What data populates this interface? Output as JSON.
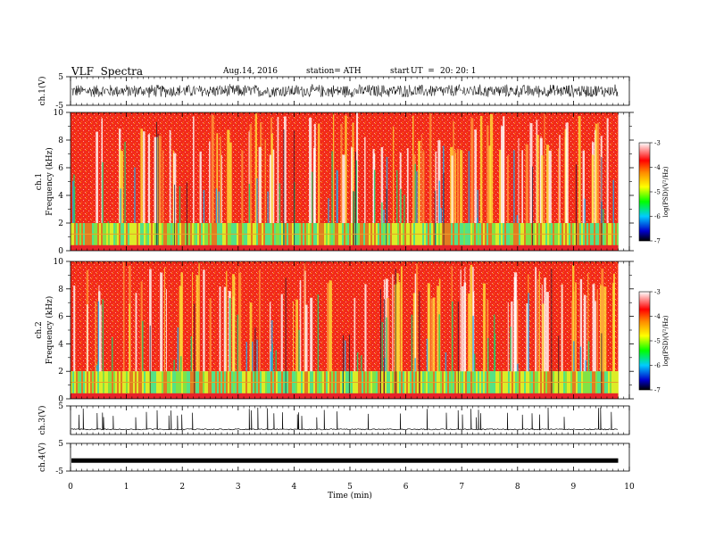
{
  "header": {
    "title": "VLF  Spectra",
    "date": "Aug.14, 2016",
    "station": "station= ATH",
    "start_label": "start",
    "ut_label": "UT  =",
    "ut_value": "20: 20: 1"
  },
  "chart_data": [
    {
      "type": "line",
      "name": "ch1-waveform",
      "ylabel": "ch.1(V)",
      "ylim": [
        -5,
        5
      ],
      "yticks": [
        "5",
        "-5"
      ],
      "xlim": [
        0,
        10
      ],
      "description_values": {
        "amplitude_min": -2.5,
        "amplitude_max": 2.5
      }
    },
    {
      "type": "heatmap",
      "name": "ch1-spectrogram",
      "ylabel": "ch.1\nFrequency  (kHz)",
      "ylabel_line1": "ch.1",
      "ylabel_line2": "Frequency  (kHz)",
      "ylim": [
        0,
        10
      ],
      "yticks": [
        "0",
        "2",
        "4",
        "6",
        "8",
        "10"
      ],
      "xlim": [
        0,
        10
      ],
      "colorbar": {
        "label": "log(PSD)(V²/Hz)",
        "range": [
          -7,
          -3
        ],
        "ticks": [
          "-3",
          "-4",
          "-5",
          "-6",
          "-7"
        ]
      }
    },
    {
      "type": "heatmap",
      "name": "ch2-spectrogram",
      "ylabel": "ch.2\nFrequency  (kHz)",
      "ylabel_line1": "ch.2",
      "ylabel_line2": "Frequency  (kHz)",
      "ylim": [
        0,
        10
      ],
      "yticks": [
        "0",
        "2",
        "4",
        "6",
        "8",
        "10"
      ],
      "xlim": [
        0,
        10
      ],
      "colorbar": {
        "label": "log(PSD)(V²/Hz)",
        "range": [
          -7,
          -3
        ],
        "ticks": [
          "-3",
          "-4",
          "-5",
          "-6",
          "-7"
        ]
      }
    },
    {
      "type": "line",
      "name": "ch3-waveform",
      "ylabel": "ch.3(V)",
      "ylim": [
        -5,
        5
      ],
      "yticks": [
        "5"
      ],
      "xlim": [
        0,
        10
      ]
    },
    {
      "type": "line",
      "name": "ch4-waveform",
      "ylabel": "ch.4(V)",
      "ylim": [
        -5,
        5
      ],
      "yticks": [
        "5",
        "-5"
      ],
      "xlim": [
        0,
        10
      ],
      "level": -1.2
    }
  ],
  "xaxis": {
    "label": "Time  (min)",
    "ticks": [
      "0",
      "1",
      "2",
      "3",
      "4",
      "5",
      "6",
      "7",
      "8",
      "9",
      "10"
    ],
    "range": [
      0,
      10
    ],
    "data_end": 9.8
  },
  "colors": {
    "spectrum_scale": [
      "#000000",
      "#0000ff",
      "#00ffff",
      "#00ff00",
      "#ffff00",
      "#ff0000",
      "#ffffff"
    ]
  }
}
